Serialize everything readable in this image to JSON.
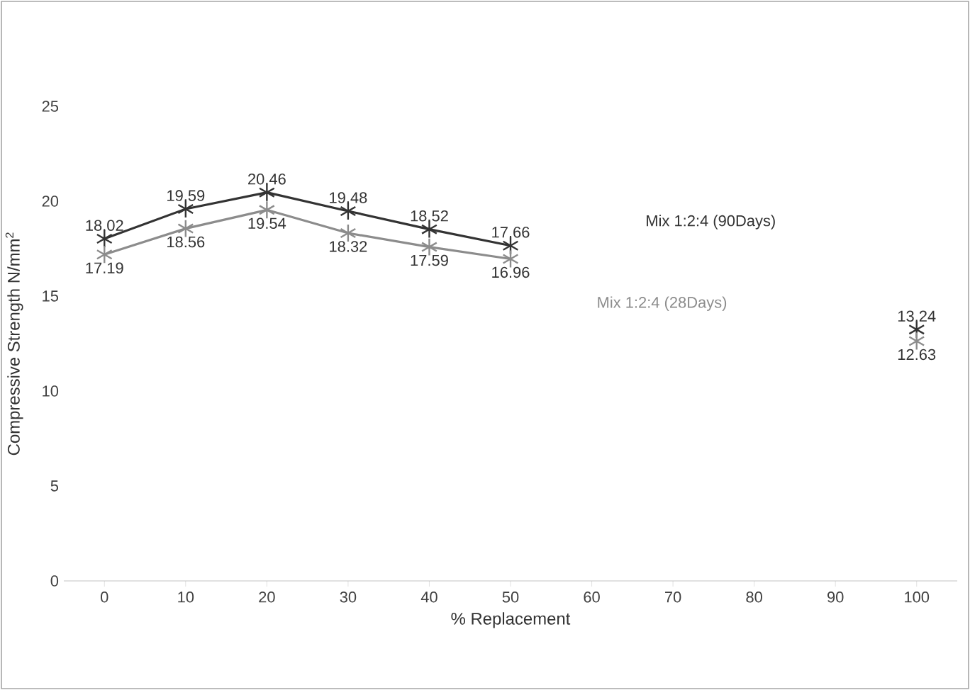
{
  "chart_data": {
    "type": "line",
    "ylabel": "Compressive Strength N/mm$^{2}$",
    "xlabel": "% Replacement",
    "categories": [
      "0",
      "10",
      "20",
      "30",
      "40",
      "50",
      "60",
      "70",
      "80",
      "90",
      "100"
    ],
    "series": [
      {
        "name": "Mix 1:2:4 (90Days)",
        "color": "#333333",
        "values": [
          18.02,
          19.59,
          20.46,
          19.48,
          18.52,
          17.66,
          null,
          null,
          null,
          null,
          13.24
        ]
      },
      {
        "name": "Mix 1:2:4 (28Days)",
        "color": "#8c8c8c",
        "values": [
          17.19,
          18.56,
          19.54,
          18.32,
          17.59,
          16.96,
          null,
          null,
          null,
          null,
          12.63
        ]
      }
    ],
    "ylim": [
      0,
      25
    ],
    "yticks": [
      0,
      5,
      10,
      15,
      20,
      25
    ],
    "marker": "cross",
    "data_labels": true,
    "grid": false
  }
}
